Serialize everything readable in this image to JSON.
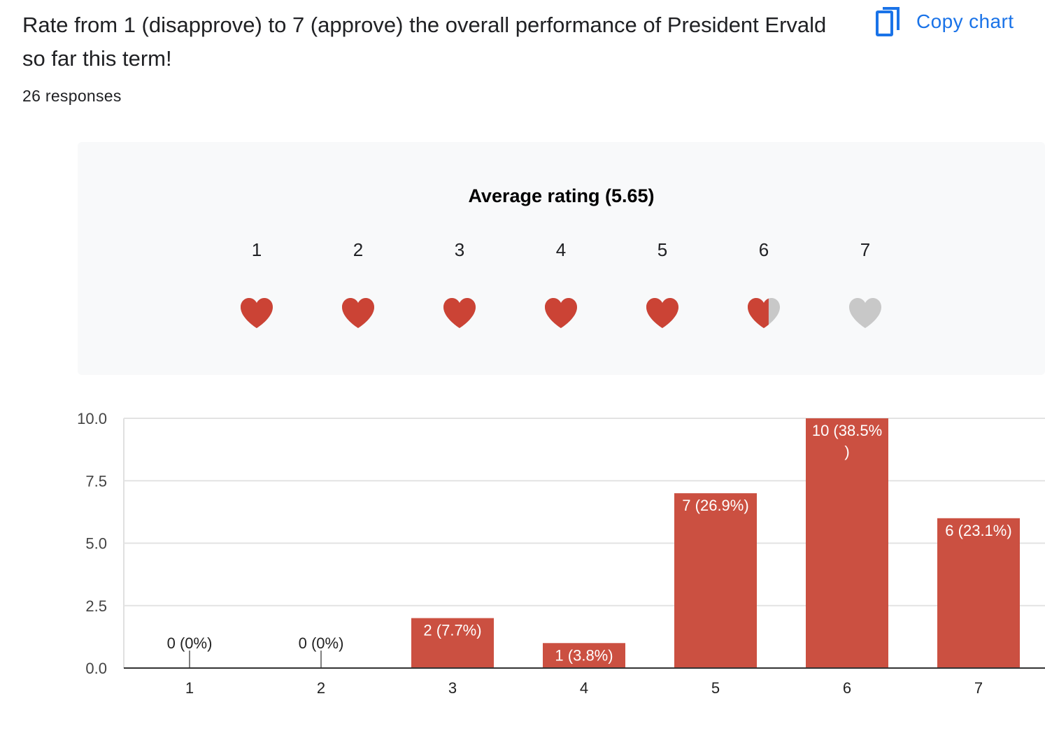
{
  "question": "Rate from 1 (disapprove) to 7 (approve) the overall performance of President Ervald so far this term!",
  "responses_label": "26 responses",
  "copy_chart_label": "Copy chart",
  "copy_icon": "copy-icon",
  "rating": {
    "title": "Average rating (5.65)",
    "average": 5.65,
    "scale": [
      "1",
      "2",
      "3",
      "4",
      "5",
      "6",
      "7"
    ],
    "heart_icon": "heart-icon",
    "filled_color": "#cb4335",
    "empty_color": "#c8c8c8"
  },
  "chart_data": {
    "type": "bar",
    "categories": [
      "1",
      "2",
      "3",
      "4",
      "5",
      "6",
      "7"
    ],
    "values": [
      0,
      0,
      2,
      1,
      7,
      10,
      6
    ],
    "data_labels": [
      "0 (0%)",
      "0 (0%)",
      "2 (7.7%)",
      "1 (3.8%)",
      "7 (26.9%)",
      "10 (38.5%\n)",
      "6 (23.1%)"
    ],
    "yticks": [
      "0.0",
      "2.5",
      "5.0",
      "7.5",
      "10.0"
    ],
    "ylim": [
      0,
      10
    ],
    "bar_color": "#cb5041",
    "title": "",
    "xlabel": "",
    "ylabel": ""
  }
}
